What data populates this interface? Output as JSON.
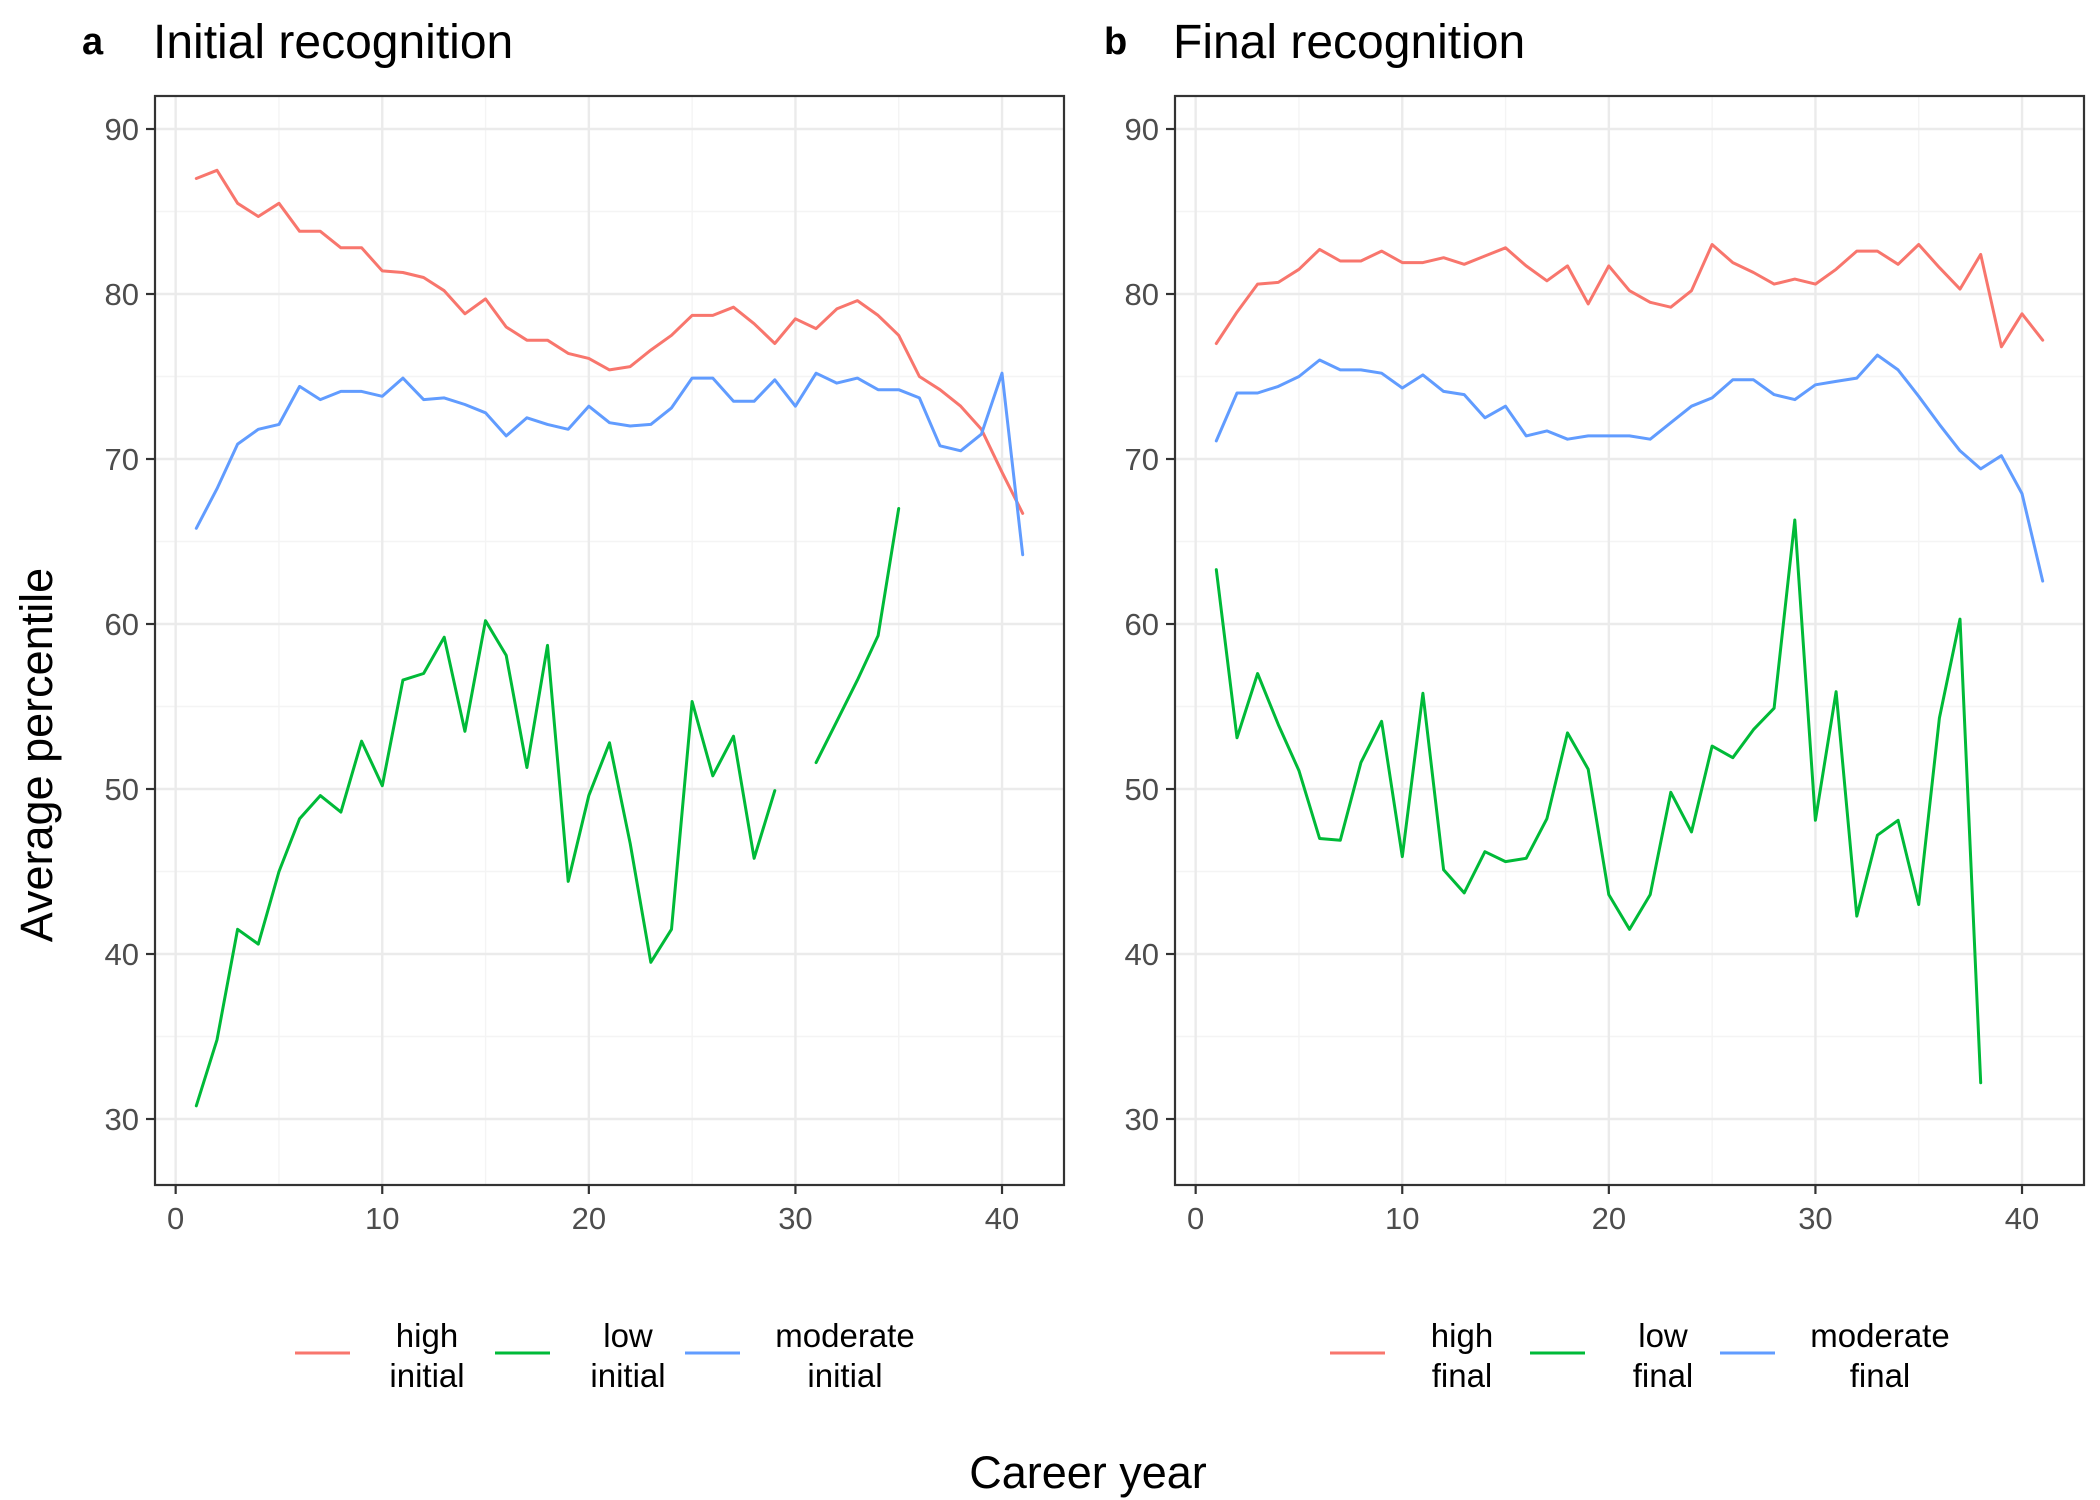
{
  "chart_data": {
    "type": "line",
    "ylabel": "Average percentile",
    "xlabel": "Career year",
    "xlim": [
      -1,
      43
    ],
    "ylim": [
      26,
      92
    ],
    "xticks": [
      0,
      10,
      20,
      30,
      40
    ],
    "yticks": [
      30,
      40,
      50,
      60,
      70,
      80,
      90
    ],
    "grid": true,
    "legend_position": "bottom",
    "colors": {
      "high": "#F8766D",
      "low": "#00BA38",
      "moderate": "#619CFF"
    },
    "panels": [
      {
        "letter": "a",
        "title": "Initial recognition",
        "legend": [
          {
            "label_line1": "high",
            "label_line2": "initial",
            "color": "#F8766D"
          },
          {
            "label_line1": "low",
            "label_line2": "initial",
            "color": "#00BA38"
          },
          {
            "label_line1": "moderate",
            "label_line2": "initial",
            "color": "#619CFF"
          }
        ],
        "series": [
          {
            "name": "high initial",
            "color": "#F8766D",
            "x": [
              1,
              2,
              3,
              4,
              5,
              6,
              7,
              8,
              9,
              10,
              11,
              12,
              13,
              14,
              15,
              16,
              17,
              18,
              19,
              20,
              21,
              22,
              23,
              24,
              25,
              26,
              27,
              28,
              29,
              30,
              31,
              32,
              33,
              34,
              35,
              36,
              37,
              38,
              39,
              40,
              41
            ],
            "y": [
              87,
              87.5,
              85.5,
              84.7,
              85.5,
              83.8,
              83.8,
              82.8,
              82.8,
              81.4,
              81.3,
              81.0,
              80.2,
              78.8,
              79.7,
              78.0,
              77.2,
              77.2,
              76.4,
              76.1,
              75.4,
              75.6,
              76.6,
              77.5,
              78.7,
              78.7,
              79.2,
              78.2,
              77.0,
              78.5,
              77.9,
              79.1,
              79.6,
              78.7,
              77.5,
              75.0,
              74.2,
              73.2,
              71.8,
              69.2,
              66.7
            ]
          },
          {
            "name": "low initial",
            "color": "#00BA38",
            "x": [
              1,
              2,
              3,
              4,
              5,
              6,
              7,
              8,
              9,
              10,
              11,
              12,
              13,
              14,
              15,
              16,
              17,
              18,
              19,
              20,
              21,
              22,
              23,
              24,
              25,
              26,
              27,
              28,
              29,
              null,
              31,
              32,
              33,
              34,
              35
            ],
            "y": [
              30.8,
              34.8,
              41.5,
              40.6,
              45.0,
              48.2,
              49.6,
              48.6,
              52.9,
              50.2,
              56.6,
              57.0,
              59.2,
              53.5,
              60.2,
              58.1,
              51.3,
              58.7,
              44.4,
              49.6,
              52.8,
              46.7,
              39.5,
              41.5,
              55.3,
              50.8,
              53.2,
              45.8,
              49.9,
              null,
              51.6,
              54.1,
              56.6,
              59.3,
              67.0
            ]
          },
          {
            "name": "moderate initial",
            "color": "#619CFF",
            "x": [
              1,
              2,
              3,
              4,
              5,
              6,
              7,
              8,
              9,
              10,
              11,
              12,
              13,
              14,
              15,
              16,
              17,
              18,
              19,
              20,
              21,
              22,
              23,
              24,
              25,
              26,
              27,
              28,
              29,
              30,
              31,
              32,
              33,
              34,
              35,
              36,
              37,
              38,
              39,
              40,
              41
            ],
            "y": [
              65.8,
              68.2,
              70.9,
              71.8,
              72.1,
              74.4,
              73.6,
              74.1,
              74.1,
              73.8,
              74.9,
              73.6,
              73.7,
              73.3,
              72.8,
              71.4,
              72.5,
              72.1,
              71.8,
              73.2,
              72.2,
              72.0,
              72.1,
              73.1,
              74.9,
              74.9,
              73.5,
              73.5,
              74.8,
              73.2,
              75.2,
              74.6,
              74.9,
              74.2,
              74.2,
              73.7,
              70.8,
              70.5,
              71.5,
              75.2,
              64.2
            ]
          }
        ]
      },
      {
        "letter": "b",
        "title": "Final recognition",
        "legend": [
          {
            "label_line1": "high",
            "label_line2": "final",
            "color": "#F8766D"
          },
          {
            "label_line1": "low",
            "label_line2": "final",
            "color": "#00BA38"
          },
          {
            "label_line1": "moderate",
            "label_line2": "final",
            "color": "#619CFF"
          }
        ],
        "series": [
          {
            "name": "high final",
            "color": "#F8766D",
            "x": [
              1,
              2,
              3,
              4,
              5,
              6,
              7,
              8,
              9,
              10,
              11,
              12,
              13,
              14,
              15,
              16,
              17,
              18,
              19,
              20,
              21,
              22,
              23,
              24,
              25,
              26,
              27,
              28,
              29,
              30,
              31,
              32,
              33,
              34,
              35,
              36,
              37,
              38,
              39,
              40,
              41
            ],
            "y": [
              77.0,
              78.9,
              80.6,
              80.7,
              81.5,
              82.7,
              82.0,
              82.0,
              82.6,
              81.9,
              81.9,
              82.2,
              81.8,
              82.3,
              82.8,
              81.7,
              80.8,
              81.7,
              79.4,
              81.7,
              80.2,
              79.5,
              79.2,
              80.2,
              83.0,
              81.9,
              81.3,
              80.6,
              80.9,
              80.6,
              81.5,
              82.6,
              82.6,
              81.8,
              83.0,
              81.6,
              80.3,
              82.4,
              76.8,
              78.8,
              77.2
            ]
          },
          {
            "name": "low final",
            "color": "#00BA38",
            "x": [
              1,
              2,
              3,
              4,
              5,
              6,
              7,
              8,
              9,
              10,
              11,
              12,
              13,
              14,
              15,
              16,
              17,
              18,
              19,
              20,
              21,
              22,
              23,
              24,
              25,
              26,
              27,
              28,
              29,
              30,
              31,
              32,
              33,
              34,
              35,
              36,
              37,
              38
            ],
            "y": [
              63.3,
              53.1,
              57.0,
              53.9,
              51.1,
              47.0,
              46.9,
              51.6,
              54.1,
              45.9,
              55.8,
              45.1,
              43.7,
              46.2,
              45.6,
              45.8,
              48.2,
              53.4,
              51.2,
              43.6,
              41.5,
              43.6,
              49.8,
              47.4,
              52.6,
              51.9,
              53.6,
              54.9,
              66.3,
              48.1,
              55.9,
              42.3,
              47.2,
              48.1,
              43.0,
              54.3,
              60.3,
              32.2
            ]
          },
          {
            "name": "moderate final",
            "color": "#619CFF",
            "x": [
              1,
              2,
              3,
              4,
              5,
              6,
              7,
              8,
              9,
              10,
              11,
              12,
              13,
              14,
              15,
              16,
              17,
              18,
              19,
              20,
              21,
              22,
              23,
              24,
              25,
              26,
              27,
              28,
              29,
              30,
              31,
              32,
              33,
              34,
              35,
              36,
              37,
              38,
              39,
              40,
              41
            ],
            "y": [
              71.1,
              74.0,
              74.0,
              74.4,
              75.0,
              76.0,
              75.4,
              75.4,
              75.2,
              74.3,
              75.1,
              74.1,
              73.9,
              72.5,
              73.2,
              71.4,
              71.7,
              71.2,
              71.4,
              71.4,
              71.4,
              71.2,
              72.2,
              73.2,
              73.7,
              74.8,
              74.8,
              73.9,
              73.6,
              74.5,
              74.7,
              74.9,
              76.3,
              75.4,
              73.8,
              72.1,
              70.5,
              69.4,
              70.2,
              67.9,
              62.6
            ]
          }
        ]
      }
    ]
  }
}
